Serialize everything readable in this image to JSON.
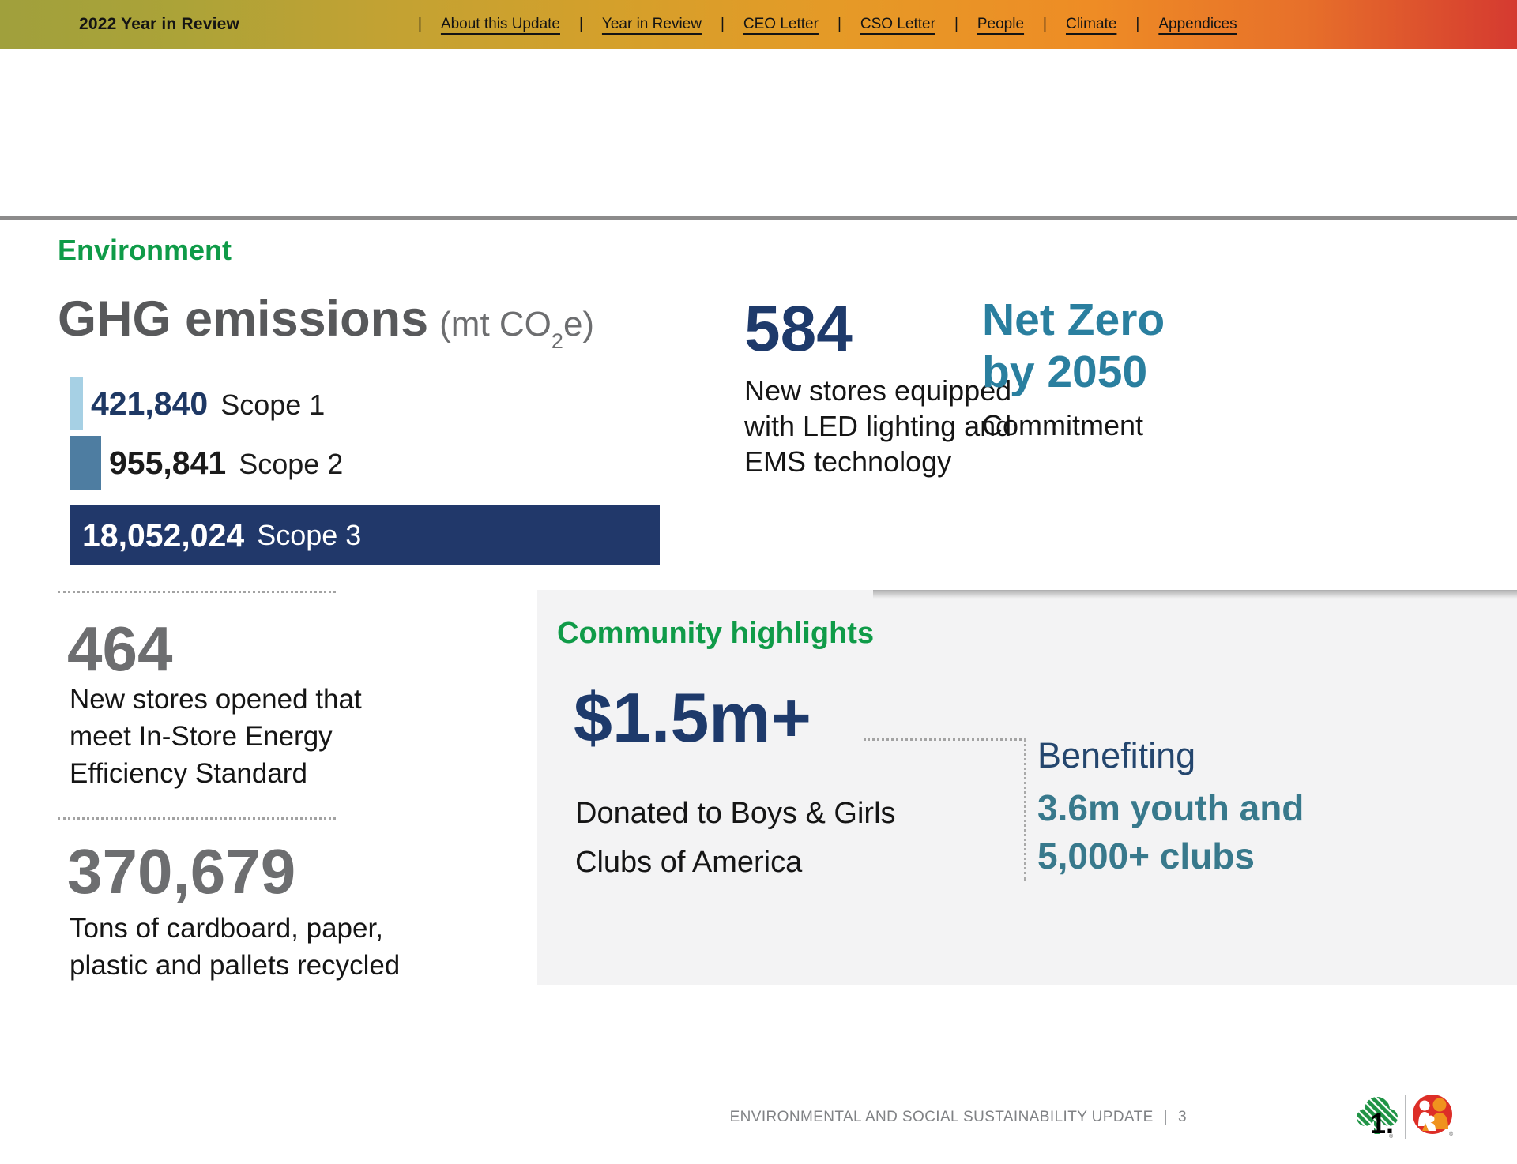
{
  "header": {
    "title": "2022 Year in Review",
    "separator": "|",
    "nav_items": [
      "About this Update",
      "Year in Review",
      "CEO Letter",
      "CSO Letter",
      "People",
      "Climate",
      "Appendices"
    ]
  },
  "environment": {
    "heading": "Environment",
    "ghg_title": "GHG emissions",
    "ghg_unit_pre": "(mt CO",
    "ghg_unit_sub": "2",
    "ghg_unit_post": "e)",
    "stat_464": {
      "value": "464",
      "desc": "New stores opened that\nmeet In-Store Energy\nEfficiency Standard"
    },
    "stat_370679": {
      "value": "370,679",
      "desc": "Tons of cardboard, paper,\nplastic and pallets recycled"
    },
    "stat_584": {
      "value": "584",
      "desc": "New stores equipped\nwith LED lighting and\nEMS technology"
    },
    "net_zero": {
      "heading": "Net Zero\nby 2050",
      "sub": "Commitment"
    }
  },
  "chart_data": {
    "type": "bar",
    "title": "GHG emissions (mt CO2e)",
    "orientation": "horizontal",
    "categories": [
      "Scope 1",
      "Scope 2",
      "Scope 3"
    ],
    "values": [
      421840,
      955841,
      18052024
    ],
    "value_labels": [
      "421,840",
      "955,841",
      "18,052,024"
    ],
    "bar_colors": [
      "#a6d0e4",
      "#4e7da1",
      "#21386a"
    ],
    "value_label_colors": [
      "#1e3864",
      "#1b1b1b",
      "#ffffff"
    ],
    "xlim": [
      0,
      18052024
    ],
    "grid": false,
    "legend": false
  },
  "community": {
    "heading": "Community highlights",
    "donation_value": "$1.5m+",
    "donation_desc": "Donated to Boys & Girls\nClubs of America",
    "benefit_label": "Benefiting",
    "benefit_lines": "3.6m youth and\n5,000+ clubs"
  },
  "footer": {
    "text": "ENVIRONMENTAL AND SOCIAL SUSTAINABILITY UPDATE",
    "separator": "|",
    "page_number": "3",
    "logos": [
      "dollar-tree-logo",
      "family-dollar-logo"
    ]
  },
  "colors": {
    "green_heading": "#0f9b48",
    "title_gray": "#58595b",
    "stat_gray": "#6d6e70",
    "navy": "#1e3a6b",
    "teal_netzero": "#2a7f9f",
    "teal_benefit": "#38798c",
    "benefit_navy": "#24466e",
    "panel_bg": "#f3f3f4",
    "header_gradient": [
      "#a0a03c",
      "#d4a02b",
      "#ee8c25",
      "#d53a30"
    ],
    "rule_gray": "#8c8b8b"
  }
}
